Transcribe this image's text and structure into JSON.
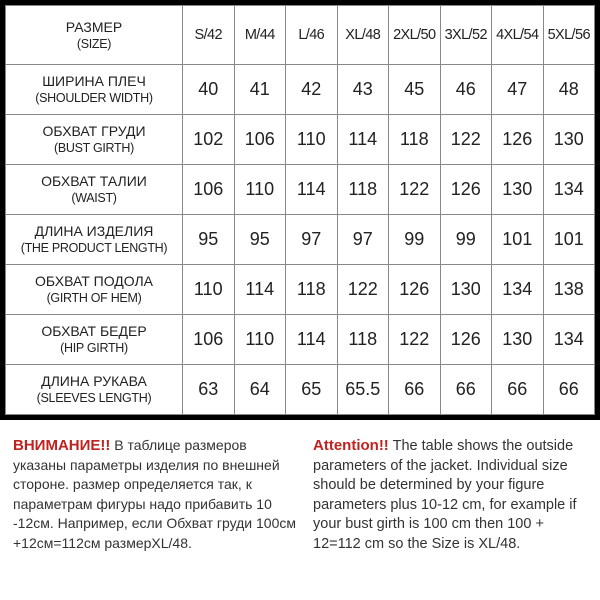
{
  "table": {
    "header": {
      "label_ru": "РАЗМЕР",
      "label_en": "(SIZE)"
    },
    "sizes": [
      "S/42",
      "M/44",
      "L/46",
      "XL/48",
      "2XL/50",
      "3XL/52",
      "4XL/54",
      "5XL/56"
    ],
    "rows": [
      {
        "ru": "ШИРИНА ПЛЕЧ",
        "en": "(SHOULDER WIDTH)",
        "values": [
          "40",
          "41",
          "42",
          "43",
          "45",
          "46",
          "47",
          "48"
        ]
      },
      {
        "ru": "ОБХВАТ ГРУДИ",
        "en": "(BUST GIRTH)",
        "values": [
          "102",
          "106",
          "110",
          "114",
          "118",
          "122",
          "126",
          "130"
        ]
      },
      {
        "ru": "ОБХВАТ ТАЛИИ",
        "en": "(WAIST)",
        "values": [
          "106",
          "110",
          "114",
          "118",
          "122",
          "126",
          "130",
          "134"
        ]
      },
      {
        "ru": "ДЛИНА ИЗДЕЛИЯ",
        "en": "(THE PRODUCT LENGTH)",
        "values": [
          "95",
          "95",
          "97",
          "97",
          "99",
          "99",
          "101",
          "101"
        ]
      },
      {
        "ru": "ОБХВАТ ПОДОЛА",
        "en": "(GIRTH OF HEM)",
        "values": [
          "110",
          "114",
          "118",
          "122",
          "126",
          "130",
          "134",
          "138"
        ]
      },
      {
        "ru": "ОБХВАТ БЕДЕР",
        "en": "(HIP GIRTH)",
        "values": [
          "106",
          "110",
          "114",
          "118",
          "122",
          "126",
          "130",
          "134"
        ]
      },
      {
        "ru": "ДЛИНА РУКАВА",
        "en": "(SLEEVES LENGTH)",
        "values": [
          "63",
          "64",
          "65",
          "65.5",
          "66",
          "66",
          "66",
          "66"
        ]
      }
    ]
  },
  "notes": {
    "ru": {
      "warning": "ВНИМАНИЕ!!",
      "text": "В таблице размеров указаны параметры изделия по внешней стороне. размер определяется так, к параметрам фигуры надо прибавить 10 -12см. Например, если Обхват груди 100см +12см=112см размерXL/48."
    },
    "en": {
      "warning": "Attention!!",
      "text": "The table shows the outside parameters of the jacket. Individual size should be determined by your figure parameters plus 10-12 cm, for example if your bust girth is 100 cm then 100 + 12=112 cm so the Size is XL/48."
    }
  },
  "colors": {
    "warning": "#c0221f",
    "frame": "#000000"
  }
}
